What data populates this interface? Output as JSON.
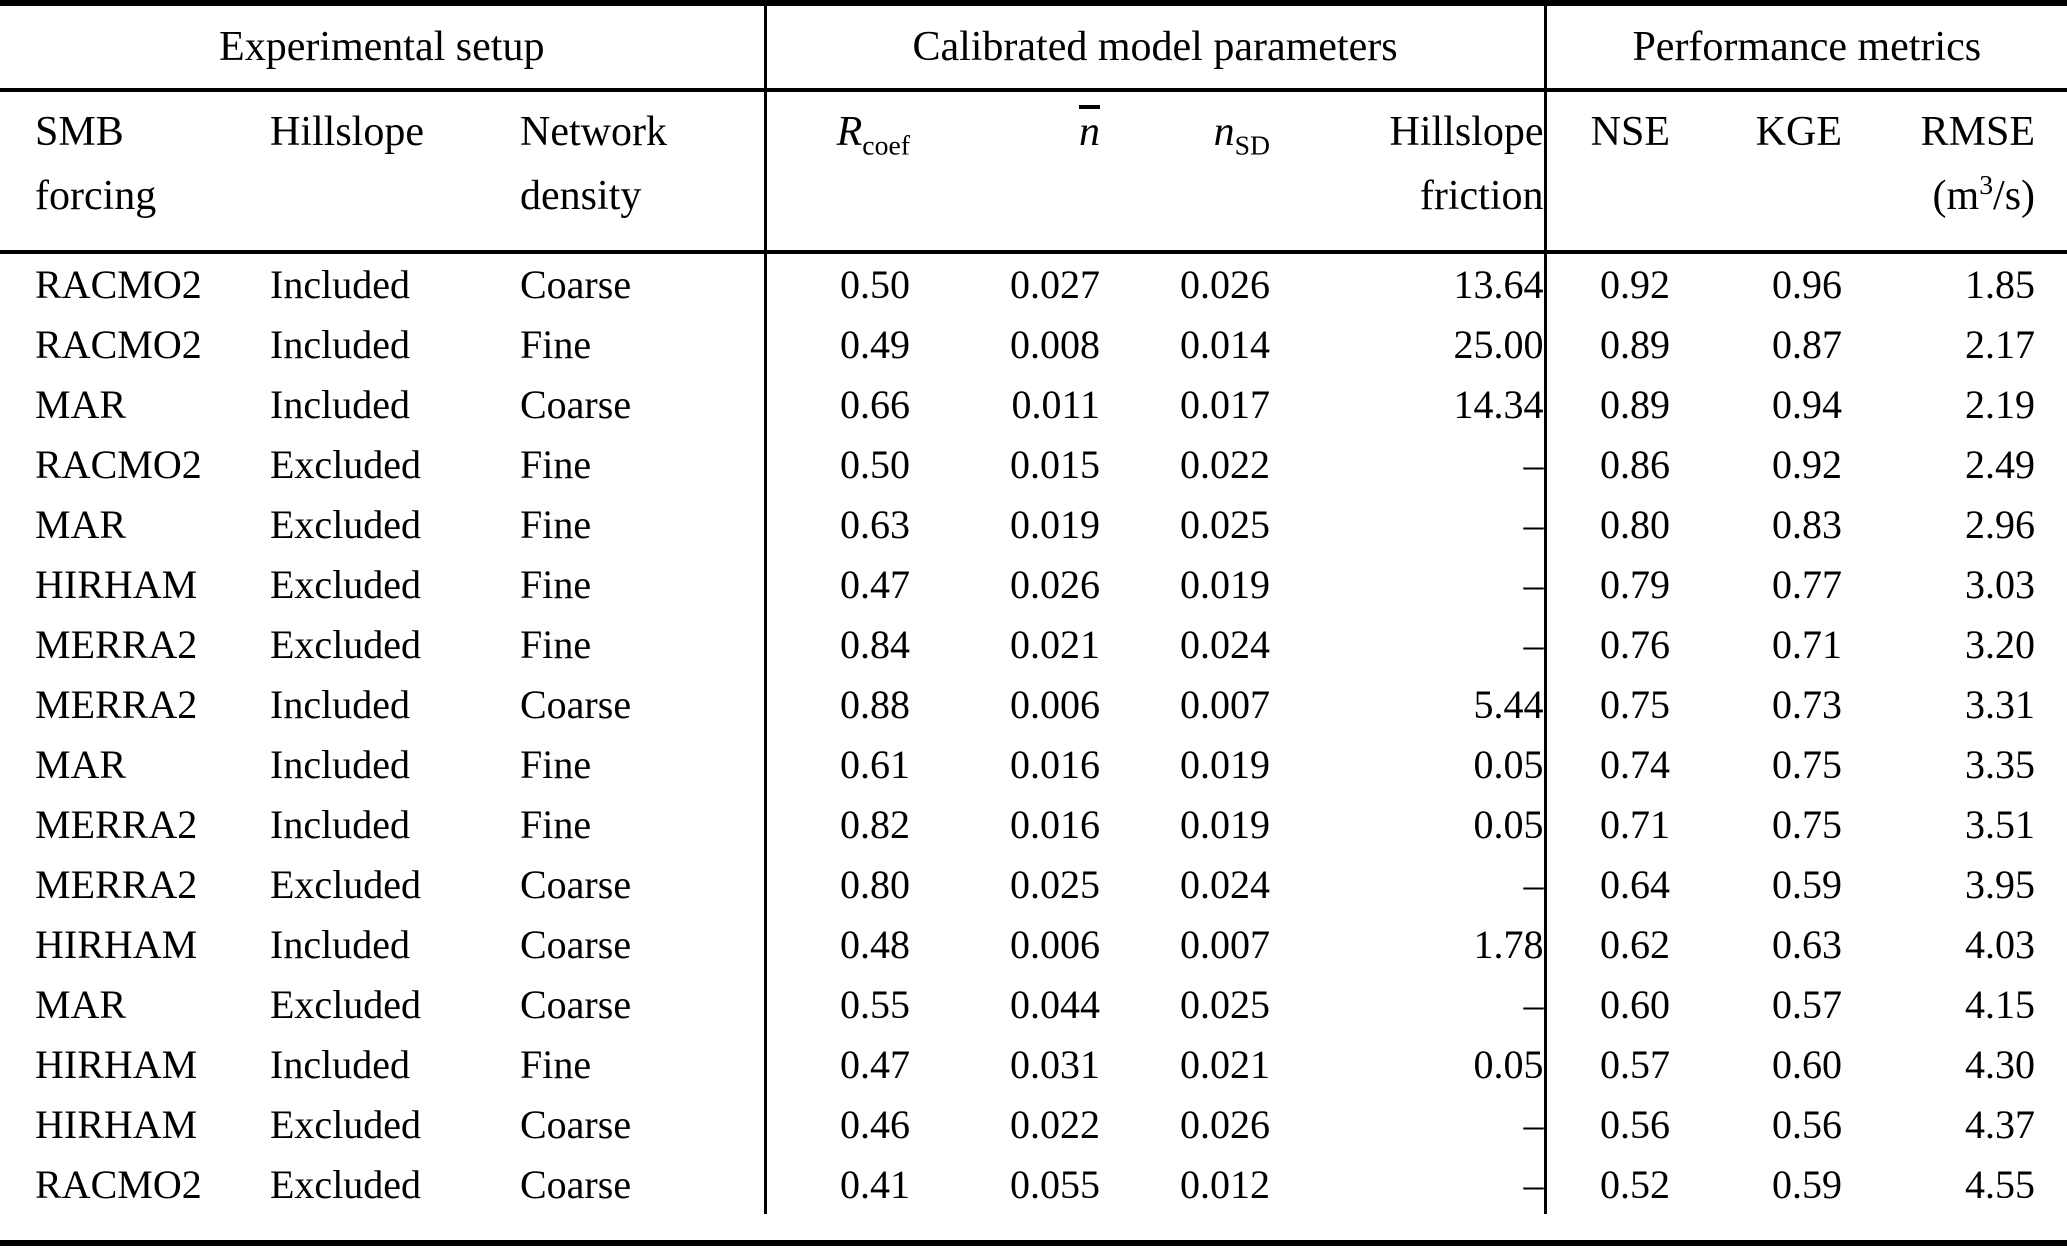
{
  "page": {
    "background_color": "#ffffff",
    "text_color": "#000000"
  },
  "table": {
    "group_headers": [
      "Experimental setup",
      "Calibrated model parameters",
      "Performance metrics"
    ],
    "column_headers": {
      "smb_forcing": {
        "line1": "SMB",
        "line2": "forcing"
      },
      "hillslope": {
        "label": "Hillslope"
      },
      "network_density": {
        "line1": "Network",
        "line2": "density"
      },
      "r_coef": {
        "base": "R",
        "sub": "coef"
      },
      "n_bar": {
        "base": "n",
        "overline": true
      },
      "n_sd": {
        "base": "n",
        "sub": "SD"
      },
      "hillslope_friction": {
        "line1": "Hillslope",
        "line2": "friction"
      },
      "nse": {
        "label": "NSE"
      },
      "kge": {
        "label": "KGE"
      },
      "rmse": {
        "line1": "RMSE",
        "unit_pre": "(m",
        "unit_sup": "3",
        "unit_post": "/s)"
      }
    },
    "column_ids": [
      "smb_forcing",
      "hillslope",
      "network_density",
      "r_coef",
      "n_bar",
      "n_sd",
      "hillslope_friction",
      "nse",
      "kge",
      "rmse"
    ],
    "rows": [
      [
        "RACMO2",
        "Included",
        "Coarse",
        "0.50",
        "0.027",
        "0.026",
        "13.64",
        "0.92",
        "0.96",
        "1.85"
      ],
      [
        "RACMO2",
        "Included",
        "Fine",
        "0.49",
        "0.008",
        "0.014",
        "25.00",
        "0.89",
        "0.87",
        "2.17"
      ],
      [
        "MAR",
        "Included",
        "Coarse",
        "0.66",
        "0.011",
        "0.017",
        "14.34",
        "0.89",
        "0.94",
        "2.19"
      ],
      [
        "RACMO2",
        "Excluded",
        "Fine",
        "0.50",
        "0.015",
        "0.022",
        "–",
        "0.86",
        "0.92",
        "2.49"
      ],
      [
        "MAR",
        "Excluded",
        "Fine",
        "0.63",
        "0.019",
        "0.025",
        "–",
        "0.80",
        "0.83",
        "2.96"
      ],
      [
        "HIRHAM",
        "Excluded",
        "Fine",
        "0.47",
        "0.026",
        "0.019",
        "–",
        "0.79",
        "0.77",
        "3.03"
      ],
      [
        "MERRA2",
        "Excluded",
        "Fine",
        "0.84",
        "0.021",
        "0.024",
        "–",
        "0.76",
        "0.71",
        "3.20"
      ],
      [
        "MERRA2",
        "Included",
        "Coarse",
        "0.88",
        "0.006",
        "0.007",
        "5.44",
        "0.75",
        "0.73",
        "3.31"
      ],
      [
        "MAR",
        "Included",
        "Fine",
        "0.61",
        "0.016",
        "0.019",
        "0.05",
        "0.74",
        "0.75",
        "3.35"
      ],
      [
        "MERRA2",
        "Included",
        "Fine",
        "0.82",
        "0.016",
        "0.019",
        "0.05",
        "0.71",
        "0.75",
        "3.51"
      ],
      [
        "MERRA2",
        "Excluded",
        "Coarse",
        "0.80",
        "0.025",
        "0.024",
        "–",
        "0.64",
        "0.59",
        "3.95"
      ],
      [
        "HIRHAM",
        "Included",
        "Coarse",
        "0.48",
        "0.006",
        "0.007",
        "1.78",
        "0.62",
        "0.63",
        "4.03"
      ],
      [
        "MAR",
        "Excluded",
        "Coarse",
        "0.55",
        "0.044",
        "0.025",
        "–",
        "0.60",
        "0.57",
        "4.15"
      ],
      [
        "HIRHAM",
        "Included",
        "Fine",
        "0.47",
        "0.031",
        "0.021",
        "0.05",
        "0.57",
        "0.60",
        "4.30"
      ],
      [
        "HIRHAM",
        "Excluded",
        "Coarse",
        "0.46",
        "0.022",
        "0.026",
        "–",
        "0.56",
        "0.56",
        "4.37"
      ],
      [
        "RACMO2",
        "Excluded",
        "Coarse",
        "0.41",
        "0.055",
        "0.012",
        "–",
        "0.52",
        "0.59",
        "4.55"
      ]
    ]
  }
}
